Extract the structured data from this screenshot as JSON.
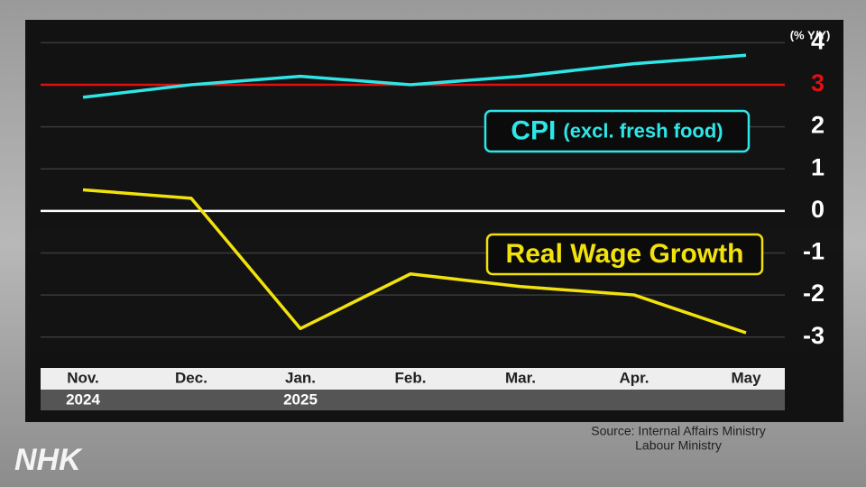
{
  "chart_data": {
    "type": "line",
    "unit_label": "(% Y/Y)",
    "categories": [
      "Nov.",
      "Dec.",
      "Jan.",
      "Feb.",
      "Mar.",
      "Apr.",
      "May"
    ],
    "year_labels": [
      "2024",
      null,
      "2025",
      null,
      null,
      null,
      null
    ],
    "series": [
      {
        "name": "CPI",
        "note": "(excl. fresh food)",
        "color": "#2fe6e6",
        "values": [
          2.7,
          3.0,
          3.2,
          3.0,
          3.2,
          3.5,
          3.7
        ]
      },
      {
        "name": "Real Wage Growth",
        "color": "#f2e20c",
        "values": [
          0.5,
          0.3,
          -2.8,
          -1.5,
          -1.8,
          -2.0,
          -2.9
        ]
      }
    ],
    "ylim": [
      -3.5,
      4.5
    ],
    "yticks": [
      4,
      3,
      2,
      1,
      0,
      -1,
      -2,
      -3
    ],
    "grid": true,
    "reference_lines": [
      {
        "value": 3,
        "color": "#e01010"
      },
      {
        "value": 0,
        "color": "#ffffff"
      }
    ],
    "source": [
      "Source: Internal Affairs Ministry",
      "Labour Ministry"
    ],
    "logo": "NHK"
  }
}
